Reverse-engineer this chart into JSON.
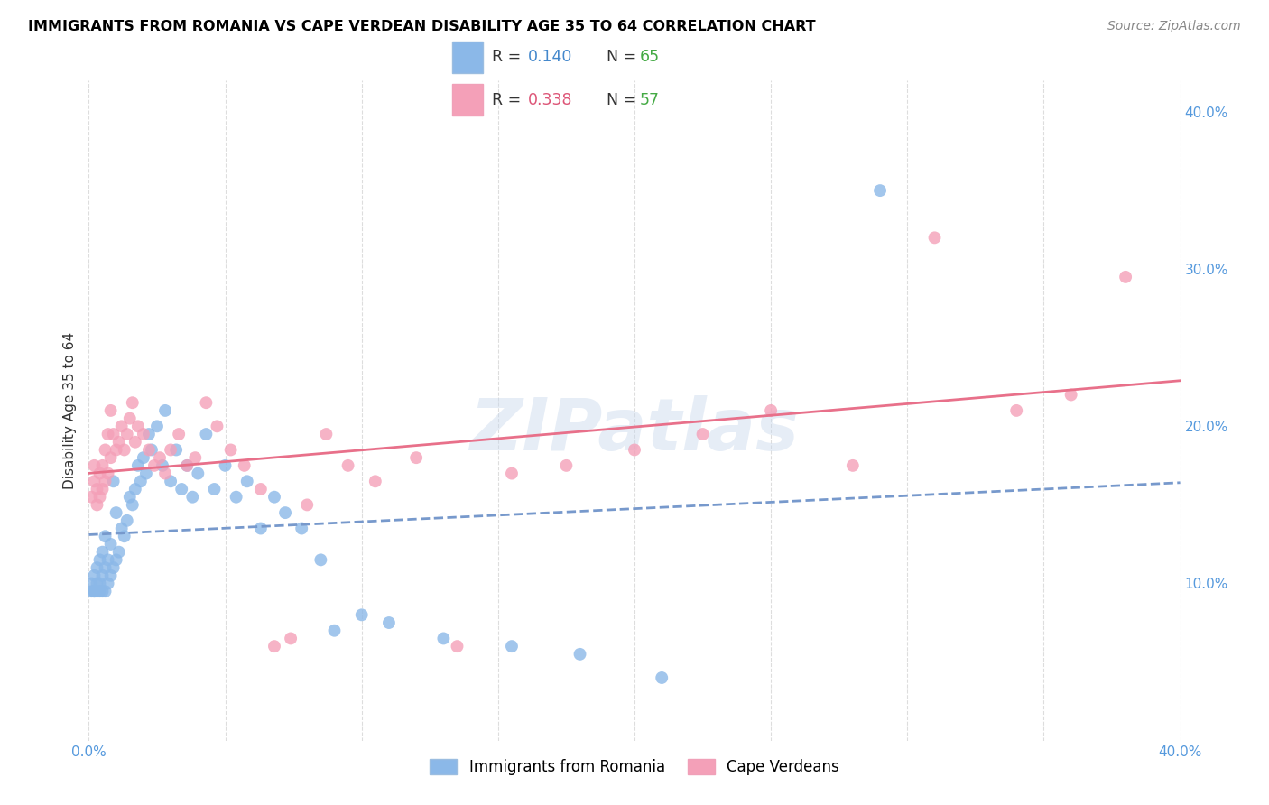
{
  "title": "IMMIGRANTS FROM ROMANIA VS CAPE VERDEAN DISABILITY AGE 35 TO 64 CORRELATION CHART",
  "source": "Source: ZipAtlas.com",
  "ylabel": "Disability Age 35 to 64",
  "xlim": [
    0.0,
    0.4
  ],
  "ylim": [
    0.0,
    0.42
  ],
  "yticks_right": [
    0.1,
    0.2,
    0.3,
    0.4
  ],
  "ytick_labels_right": [
    "10.0%",
    "20.0%",
    "30.0%",
    "40.0%"
  ],
  "romania_color": "#8BB8E8",
  "cape_verde_color": "#F4A0B8",
  "romania_line_color": "#7799CC",
  "cape_verde_line_color": "#E8708A",
  "romania_R": 0.14,
  "romania_N": 65,
  "cape_verde_R": 0.338,
  "cape_verde_N": 57,
  "legend_label_romania": "Immigrants from Romania",
  "legend_label_cape": "Cape Verdeans",
  "watermark": "ZIPatlas",
  "romania_x": [
    0.001,
    0.001,
    0.002,
    0.002,
    0.002,
    0.003,
    0.003,
    0.003,
    0.004,
    0.004,
    0.004,
    0.005,
    0.005,
    0.005,
    0.006,
    0.006,
    0.006,
    0.007,
    0.007,
    0.008,
    0.008,
    0.009,
    0.009,
    0.01,
    0.01,
    0.011,
    0.012,
    0.013,
    0.014,
    0.015,
    0.016,
    0.017,
    0.018,
    0.019,
    0.02,
    0.021,
    0.022,
    0.023,
    0.025,
    0.027,
    0.028,
    0.03,
    0.032,
    0.034,
    0.036,
    0.038,
    0.04,
    0.043,
    0.046,
    0.05,
    0.054,
    0.058,
    0.063,
    0.068,
    0.072,
    0.078,
    0.085,
    0.09,
    0.1,
    0.11,
    0.13,
    0.155,
    0.18,
    0.21,
    0.29
  ],
  "romania_y": [
    0.095,
    0.1,
    0.095,
    0.095,
    0.105,
    0.095,
    0.1,
    0.11,
    0.095,
    0.1,
    0.115,
    0.095,
    0.105,
    0.12,
    0.095,
    0.11,
    0.13,
    0.1,
    0.115,
    0.105,
    0.125,
    0.11,
    0.165,
    0.115,
    0.145,
    0.12,
    0.135,
    0.13,
    0.14,
    0.155,
    0.15,
    0.16,
    0.175,
    0.165,
    0.18,
    0.17,
    0.195,
    0.185,
    0.2,
    0.175,
    0.21,
    0.165,
    0.185,
    0.16,
    0.175,
    0.155,
    0.17,
    0.195,
    0.16,
    0.175,
    0.155,
    0.165,
    0.135,
    0.155,
    0.145,
    0.135,
    0.115,
    0.07,
    0.08,
    0.075,
    0.065,
    0.06,
    0.055,
    0.04,
    0.35
  ],
  "cape_verde_x": [
    0.001,
    0.002,
    0.002,
    0.003,
    0.003,
    0.004,
    0.004,
    0.005,
    0.005,
    0.006,
    0.006,
    0.007,
    0.007,
    0.008,
    0.008,
    0.009,
    0.01,
    0.011,
    0.012,
    0.013,
    0.014,
    0.015,
    0.016,
    0.017,
    0.018,
    0.02,
    0.022,
    0.024,
    0.026,
    0.028,
    0.03,
    0.033,
    0.036,
    0.039,
    0.043,
    0.047,
    0.052,
    0.057,
    0.063,
    0.068,
    0.074,
    0.08,
    0.087,
    0.095,
    0.105,
    0.12,
    0.135,
    0.155,
    0.175,
    0.2,
    0.225,
    0.25,
    0.28,
    0.31,
    0.34,
    0.36,
    0.38
  ],
  "cape_verde_y": [
    0.155,
    0.165,
    0.175,
    0.15,
    0.16,
    0.155,
    0.17,
    0.16,
    0.175,
    0.165,
    0.185,
    0.17,
    0.195,
    0.18,
    0.21,
    0.195,
    0.185,
    0.19,
    0.2,
    0.185,
    0.195,
    0.205,
    0.215,
    0.19,
    0.2,
    0.195,
    0.185,
    0.175,
    0.18,
    0.17,
    0.185,
    0.195,
    0.175,
    0.18,
    0.215,
    0.2,
    0.185,
    0.175,
    0.16,
    0.06,
    0.065,
    0.15,
    0.195,
    0.175,
    0.165,
    0.18,
    0.06,
    0.17,
    0.175,
    0.185,
    0.195,
    0.21,
    0.175,
    0.32,
    0.21,
    0.22,
    0.295
  ]
}
